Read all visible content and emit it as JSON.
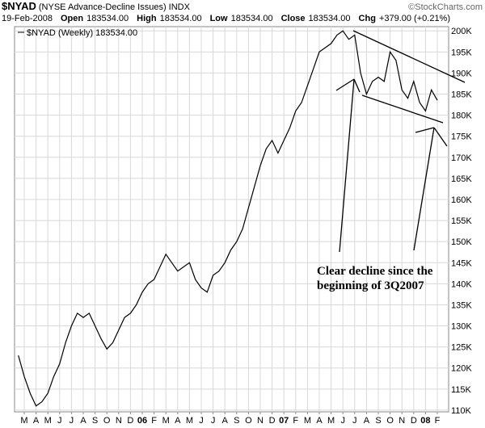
{
  "chart_data": {
    "type": "line",
    "symbol": "$NYAD",
    "title": "(NYSE Advance-Decline Issues) INDX",
    "source": "©StockCharts.com",
    "date": "19-Feb-2008",
    "quote": [
      {
        "label": "Open",
        "value": "183534.00"
      },
      {
        "label": "High",
        "value": "183534.00"
      },
      {
        "label": "Low",
        "value": "183534.00"
      },
      {
        "label": "Close",
        "value": "183534.00"
      },
      {
        "label": "Chg",
        "value": "+379.00 (+0.21%)"
      }
    ],
    "categories": [
      null,
      "M",
      null,
      "A",
      null,
      "M",
      null,
      "J",
      null,
      "J",
      null,
      "A",
      null,
      "S",
      null,
      "O",
      null,
      "N",
      null,
      "D",
      null,
      "06",
      null,
      "F",
      null,
      "M",
      null,
      "A",
      null,
      "M",
      null,
      "J",
      null,
      "J",
      null,
      "A",
      null,
      "S",
      null,
      "O",
      null,
      "N",
      null,
      "D",
      null,
      "07",
      null,
      "F",
      null,
      "M",
      null,
      "A",
      null,
      "M",
      null,
      "J",
      null,
      "J",
      null,
      "A",
      null,
      "S",
      null,
      "O",
      null,
      "N",
      null,
      "D",
      null,
      "08",
      null,
      "F"
    ],
    "series": [
      {
        "name": "$NYAD (Weekly) 183534.00",
        "color": "#000000",
        "values": [
          123000,
          118000,
          114000,
          111000,
          112000,
          114000,
          118000,
          121000,
          126000,
          130000,
          133000,
          132000,
          133000,
          130000,
          127000,
          124500,
          126000,
          129000,
          132000,
          133000,
          135000,
          138000,
          140000,
          141000,
          144000,
          147000,
          145000,
          143000,
          144000,
          145000,
          141000,
          139000,
          138000,
          142000,
          143000,
          145000,
          148000,
          150000,
          153000,
          158000,
          163000,
          168000,
          172000,
          174000,
          171000,
          174000,
          177000,
          181000,
          183000,
          187000,
          191000,
          195000,
          196000,
          197000,
          199000,
          200000,
          198000,
          199000,
          190000,
          185000,
          188000,
          189000,
          188000,
          195000,
          193000,
          186000,
          184000,
          188000,
          183000,
          181000,
          186000,
          183534
        ]
      }
    ],
    "ylim": [
      109600,
      201000
    ],
    "yticks": [
      {
        "value": 110000,
        "label": "110K"
      },
      {
        "value": 115000,
        "label": "115K"
      },
      {
        "value": 120000,
        "label": "120K"
      },
      {
        "value": 125000,
        "label": "125K"
      },
      {
        "value": 130000,
        "label": "130K"
      },
      {
        "value": 135000,
        "label": "135K"
      },
      {
        "value": 140000,
        "label": "140K"
      },
      {
        "value": 145000,
        "label": "145K"
      },
      {
        "value": 150000,
        "label": "150K"
      },
      {
        "value": 155000,
        "label": "155K"
      },
      {
        "value": 160000,
        "label": "160K"
      },
      {
        "value": 165000,
        "label": "165K"
      },
      {
        "value": 170000,
        "label": "170K"
      },
      {
        "value": 175000,
        "label": "175K"
      },
      {
        "value": 180000,
        "label": "180K"
      },
      {
        "value": 185000,
        "label": "185K"
      },
      {
        "value": 190000,
        "label": "190K"
      },
      {
        "value": 195000,
        "label": "195K"
      },
      {
        "value": 200000,
        "label": "200K"
      }
    ],
    "grid": true,
    "annotation": [
      "Clear decline since the",
      "beginning of 3Q2007"
    ]
  }
}
